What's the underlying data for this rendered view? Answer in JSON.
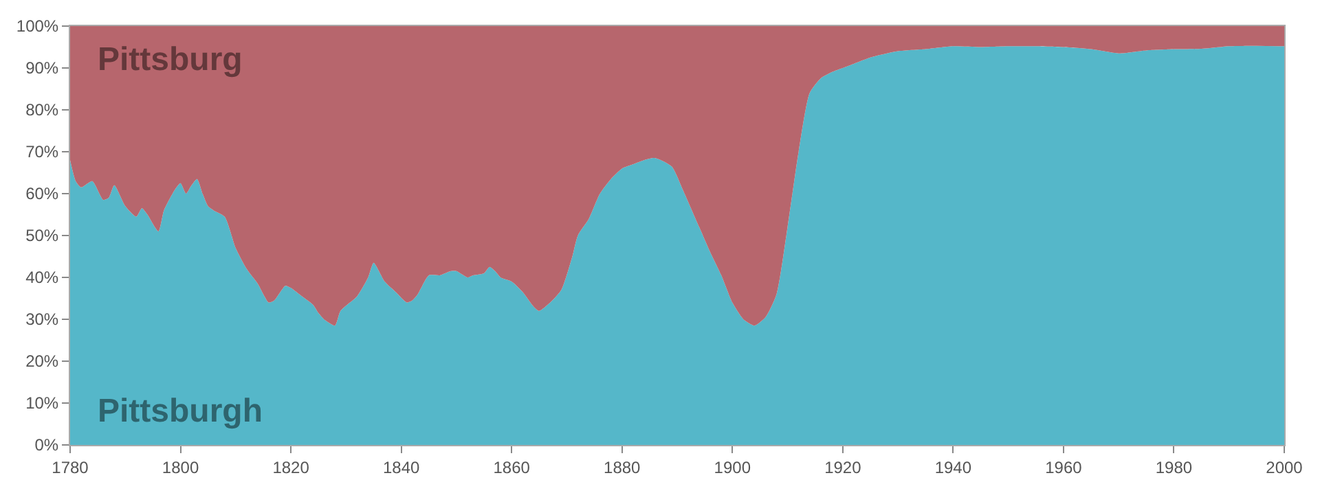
{
  "chart_data": {
    "type": "area",
    "stacked": true,
    "legend": false,
    "grid": true,
    "x": [
      1780,
      1781,
      1782,
      1784,
      1786,
      1787,
      1788,
      1790,
      1792,
      1793,
      1794,
      1796,
      1797,
      1799,
      1800,
      1801,
      1802,
      1803,
      1804,
      1805,
      1806,
      1808,
      1810,
      1812,
      1814,
      1816,
      1817,
      1819,
      1820,
      1822,
      1824,
      1825,
      1826,
      1828,
      1829,
      1832,
      1834,
      1835,
      1837,
      1839,
      1841,
      1842,
      1843,
      1845,
      1847,
      1849,
      1850,
      1852,
      1853,
      1855,
      1856,
      1857,
      1858,
      1860,
      1862,
      1864,
      1865,
      1867,
      1869,
      1871,
      1872,
      1874,
      1876,
      1878,
      1880,
      1882,
      1884,
      1886,
      1889,
      1891,
      1894,
      1896,
      1898,
      1900,
      1902,
      1904,
      1906,
      1908,
      1910,
      1912,
      1914,
      1916,
      1918,
      1920,
      1922,
      1925,
      1930,
      1935,
      1940,
      1945,
      1950,
      1955,
      1960,
      1965,
      1970,
      1975,
      1980,
      1985,
      1990,
      1995,
      2000
    ],
    "series": [
      {
        "name": "Pittsburgh",
        "color": "#55b7c9",
        "values": [
          68,
          63,
          61.5,
          63,
          58.5,
          59,
          62,
          57,
          54.5,
          56.5,
          55,
          51,
          56,
          61,
          62.5,
          60,
          62,
          63.5,
          60,
          57,
          56,
          54.5,
          47,
          42,
          38.5,
          34,
          34.5,
          38,
          37.5,
          35.5,
          33.5,
          31.5,
          30,
          28.5,
          32,
          35.5,
          40,
          43.5,
          39,
          36.5,
          34,
          34.5,
          36,
          40.5,
          40.5,
          41.5,
          41.5,
          40,
          40.5,
          41,
          42.5,
          41.5,
          40,
          39,
          36.5,
          33,
          32,
          34,
          37,
          45,
          50,
          54,
          60,
          63.5,
          66,
          67,
          68,
          68.5,
          66.5,
          61,
          52,
          46,
          40.5,
          34,
          30,
          28.5,
          30.5,
          36,
          52,
          70,
          84,
          87.5,
          89,
          90,
          91,
          92.5,
          94,
          94.5,
          95.2,
          95,
          95.2,
          95.2,
          95,
          94.5,
          93.5,
          94.2,
          94.5,
          94.6,
          95.2,
          95.3,
          95.2
        ]
      },
      {
        "name": "Pittsburg",
        "color": "#b7666d",
        "values": [
          32,
          37,
          38.5,
          37,
          41.5,
          41,
          38,
          43,
          45.5,
          43.5,
          45,
          49,
          44,
          39,
          37.5,
          40,
          38,
          36.5,
          40,
          43,
          44,
          45.5,
          53,
          58,
          61.5,
          66,
          65.5,
          62,
          62.5,
          64.5,
          66.5,
          68.5,
          70,
          71.5,
          68,
          64.5,
          60,
          56.5,
          61,
          63.5,
          66,
          65.5,
          64,
          59.5,
          59.5,
          58.5,
          58.5,
          60,
          59.5,
          59,
          57.5,
          58.5,
          60,
          61,
          63.5,
          67,
          68,
          66,
          63,
          55,
          50,
          46,
          40,
          36.5,
          34,
          33,
          32,
          31.5,
          33.5,
          39,
          48,
          54,
          59.5,
          66,
          70,
          71.5,
          69.5,
          64,
          48,
          30,
          16,
          12.5,
          11,
          10,
          9,
          7.5,
          6,
          5.5,
          4.8,
          5,
          4.8,
          4.8,
          5,
          5.5,
          6.5,
          5.8,
          5.5,
          5.4,
          4.8,
          4.7,
          4.8
        ]
      }
    ],
    "xlim": [
      1780,
      2000
    ],
    "xticks": [
      1780,
      1800,
      1820,
      1840,
      1860,
      1880,
      1900,
      1920,
      1940,
      1960,
      1980,
      2000
    ],
    "ylim": [
      0,
      100
    ],
    "yticks": [
      {
        "value": 0,
        "label": "0%"
      },
      {
        "value": 10,
        "label": "10%"
      },
      {
        "value": 20,
        "label": "20%"
      },
      {
        "value": 30,
        "label": "30%"
      },
      {
        "value": 40,
        "label": "40%"
      },
      {
        "value": 50,
        "label": "50%"
      },
      {
        "value": 60,
        "label": "60%"
      },
      {
        "value": 70,
        "label": "70%"
      },
      {
        "value": 80,
        "label": "80%"
      },
      {
        "value": 90,
        "label": "90%"
      },
      {
        "value": 100,
        "label": "100%"
      }
    ]
  }
}
